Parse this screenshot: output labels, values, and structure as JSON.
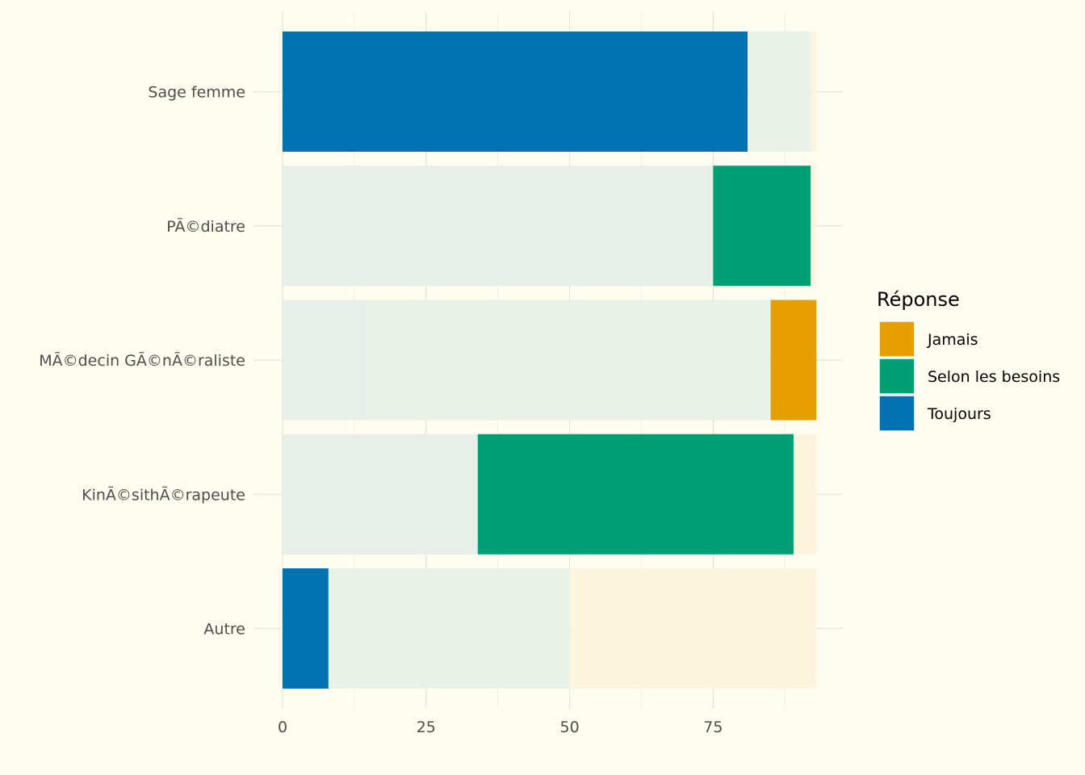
{
  "chart_data": {
    "type": "bar",
    "orientation": "horizontal",
    "stacked": true,
    "title": "",
    "xlabel": "",
    "ylabel": "",
    "xlim": [
      0,
      95
    ],
    "x_ticks": [
      0,
      25,
      50,
      75
    ],
    "grid": true,
    "legend_position": "right",
    "legend_title": "Réponse",
    "categories": [
      "Sage femme",
      "PÃ©diatre",
      "MÃ©decin GÃ©nÃ©raliste",
      "KinÃ©sithÃ©rapeute",
      "Autre"
    ],
    "series": [
      {
        "name": "Toujours",
        "color": "#0072b2",
        "values": [
          81,
          75,
          14.5,
          34,
          8
        ]
      },
      {
        "name": "Selon les besoins",
        "color": "#009e73",
        "values": [
          11,
          17,
          70.5,
          55,
          42
        ]
      },
      {
        "name": "Jamais",
        "color": "#e69f00",
        "values": [
          1,
          1,
          8,
          4,
          43
        ]
      }
    ],
    "highlighted": [
      {
        "category": "Sage femme",
        "series": "Toujours"
      },
      {
        "category": "PÃ©diatre",
        "series": "Selon les besoins"
      },
      {
        "category": "MÃ©decin GÃ©nÃ©raliste",
        "series": "Jamais"
      },
      {
        "category": "KinÃ©sithÃ©rapeute",
        "series": "Selon les besoins"
      },
      {
        "category": "Autre",
        "series": "Toujours"
      }
    ],
    "muted_colors": {
      "Toujours": "#e5ede9",
      "Selon les besoins": "#e6f1e5",
      "Jamais": "#fcf3da"
    },
    "legend_order": [
      "Jamais",
      "Selon les besoins",
      "Toujours"
    ]
  }
}
